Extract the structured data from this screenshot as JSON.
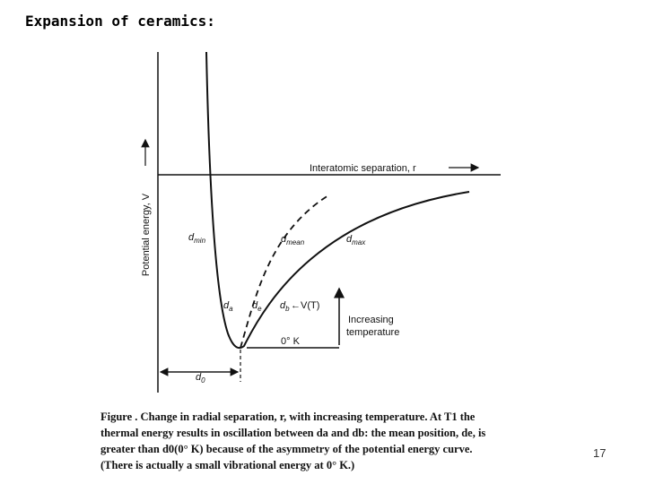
{
  "header": {
    "title": "Expansion of ceramics:"
  },
  "page_number": "17",
  "diagram": {
    "y_axis_label": "Potential energy, V",
    "x_axis_label": "Interatomic separation, r",
    "labels": {
      "d_min": {
        "symbol": "d",
        "sub": "min"
      },
      "d_mean": {
        "symbol": "d",
        "sub": "mean"
      },
      "d_max": {
        "symbol": "d",
        "sub": "max"
      },
      "d_a": {
        "symbol": "d",
        "sub": "a"
      },
      "d_e": {
        "symbol": "d",
        "sub": "e"
      },
      "d_b": {
        "symbol": "d",
        "sub": "b"
      },
      "d_0": {
        "symbol": "d",
        "sub": "0"
      }
    },
    "level_label": "←V(T)",
    "zero_label": "0° K",
    "temperature_label": [
      "Increasing",
      "temperature"
    ]
  },
  "caption": {
    "lines": [
      "Figure .   Change in radial separation, r, with increasing temperature.  At T1 the",
      "thermal energy results in oscillation between da and db: the mean position, de, is",
      "greater than d0(0° K) because of the asymmetry of the potential energy curve.",
      "(There is actually a small vibrational energy at 0° K.)"
    ]
  }
}
